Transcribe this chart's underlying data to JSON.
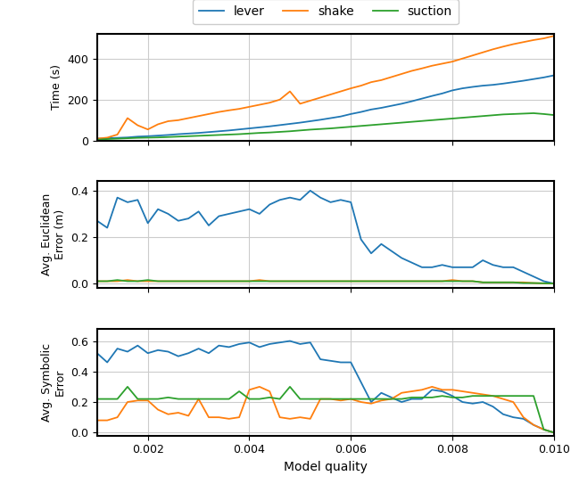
{
  "x": [
    0.001,
    0.0012,
    0.0014,
    0.0016,
    0.0018,
    0.002,
    0.0022,
    0.0024,
    0.0026,
    0.0028,
    0.003,
    0.0032,
    0.0034,
    0.0036,
    0.0038,
    0.004,
    0.0042,
    0.0044,
    0.0046,
    0.0048,
    0.005,
    0.0052,
    0.0054,
    0.0056,
    0.0058,
    0.006,
    0.0062,
    0.0064,
    0.0066,
    0.0068,
    0.007,
    0.0072,
    0.0074,
    0.0076,
    0.0078,
    0.008,
    0.0082,
    0.0084,
    0.0086,
    0.0088,
    0.009,
    0.0092,
    0.0094,
    0.0096,
    0.0098,
    0.01
  ],
  "time_lever": [
    10,
    12,
    14,
    16,
    20,
    22,
    25,
    28,
    32,
    35,
    38,
    42,
    46,
    50,
    55,
    60,
    65,
    70,
    76,
    82,
    88,
    95,
    102,
    110,
    118,
    130,
    140,
    152,
    160,
    170,
    180,
    192,
    205,
    218,
    230,
    245,
    255,
    262,
    268,
    272,
    278,
    285,
    292,
    300,
    308,
    318
  ],
  "time_shake": [
    10,
    15,
    30,
    110,
    75,
    55,
    80,
    95,
    100,
    110,
    120,
    130,
    140,
    148,
    155,
    165,
    175,
    185,
    200,
    240,
    180,
    195,
    210,
    225,
    240,
    255,
    268,
    285,
    295,
    310,
    325,
    340,
    352,
    365,
    375,
    385,
    400,
    415,
    430,
    445,
    458,
    470,
    480,
    490,
    498,
    510
  ],
  "time_suction": [
    5,
    8,
    10,
    12,
    14,
    15,
    16,
    18,
    20,
    22,
    24,
    26,
    28,
    30,
    32,
    35,
    38,
    40,
    43,
    46,
    50,
    54,
    57,
    60,
    64,
    68,
    72,
    76,
    80,
    84,
    88,
    92,
    96,
    100,
    104,
    108,
    112,
    116,
    120,
    124,
    128,
    130,
    132,
    134,
    130,
    125
  ],
  "eucl_lever": [
    0.27,
    0.24,
    0.37,
    0.35,
    0.36,
    0.26,
    0.32,
    0.3,
    0.27,
    0.28,
    0.31,
    0.25,
    0.29,
    0.3,
    0.31,
    0.32,
    0.3,
    0.34,
    0.36,
    0.37,
    0.36,
    0.4,
    0.37,
    0.35,
    0.36,
    0.35,
    0.19,
    0.13,
    0.17,
    0.14,
    0.11,
    0.09,
    0.07,
    0.07,
    0.08,
    0.07,
    0.07,
    0.07,
    0.1,
    0.08,
    0.07,
    0.07,
    0.05,
    0.03,
    0.01,
    0.0
  ],
  "eucl_shake": [
    0.01,
    0.01,
    0.01,
    0.015,
    0.01,
    0.01,
    0.01,
    0.01,
    0.01,
    0.01,
    0.01,
    0.01,
    0.01,
    0.01,
    0.01,
    0.01,
    0.015,
    0.01,
    0.01,
    0.01,
    0.01,
    0.01,
    0.01,
    0.01,
    0.01,
    0.01,
    0.01,
    0.01,
    0.01,
    0.01,
    0.01,
    0.01,
    0.01,
    0.01,
    0.01,
    0.015,
    0.01,
    0.01,
    0.005,
    0.005,
    0.005,
    0.005,
    0.005,
    0.002,
    0.001,
    0.0
  ],
  "eucl_suction": [
    0.01,
    0.01,
    0.015,
    0.01,
    0.01,
    0.015,
    0.01,
    0.01,
    0.01,
    0.01,
    0.01,
    0.01,
    0.01,
    0.01,
    0.01,
    0.01,
    0.01,
    0.01,
    0.01,
    0.01,
    0.01,
    0.01,
    0.01,
    0.01,
    0.01,
    0.01,
    0.01,
    0.01,
    0.01,
    0.01,
    0.01,
    0.01,
    0.01,
    0.01,
    0.01,
    0.01,
    0.01,
    0.01,
    0.005,
    0.005,
    0.005,
    0.005,
    0.002,
    0.002,
    0.001,
    0.0
  ],
  "symb_lever": [
    0.52,
    0.46,
    0.55,
    0.53,
    0.57,
    0.52,
    0.54,
    0.53,
    0.5,
    0.52,
    0.55,
    0.52,
    0.57,
    0.56,
    0.58,
    0.59,
    0.56,
    0.58,
    0.59,
    0.6,
    0.58,
    0.59,
    0.48,
    0.47,
    0.46,
    0.46,
    0.33,
    0.2,
    0.26,
    0.23,
    0.2,
    0.22,
    0.22,
    0.28,
    0.27,
    0.24,
    0.2,
    0.19,
    0.2,
    0.17,
    0.12,
    0.1,
    0.09,
    0.05,
    0.02,
    0.0
  ],
  "symb_shake": [
    0.08,
    0.08,
    0.1,
    0.2,
    0.21,
    0.21,
    0.15,
    0.12,
    0.13,
    0.11,
    0.22,
    0.1,
    0.1,
    0.09,
    0.1,
    0.28,
    0.3,
    0.27,
    0.1,
    0.09,
    0.1,
    0.09,
    0.22,
    0.22,
    0.21,
    0.22,
    0.2,
    0.19,
    0.21,
    0.22,
    0.26,
    0.27,
    0.28,
    0.3,
    0.28,
    0.28,
    0.27,
    0.26,
    0.25,
    0.24,
    0.22,
    0.2,
    0.1,
    0.05,
    0.02,
    0.0
  ],
  "symb_suction": [
    0.22,
    0.22,
    0.22,
    0.3,
    0.22,
    0.22,
    0.22,
    0.23,
    0.22,
    0.22,
    0.22,
    0.22,
    0.22,
    0.22,
    0.27,
    0.22,
    0.22,
    0.23,
    0.22,
    0.3,
    0.22,
    0.22,
    0.22,
    0.22,
    0.22,
    0.22,
    0.22,
    0.22,
    0.22,
    0.22,
    0.22,
    0.23,
    0.23,
    0.23,
    0.24,
    0.23,
    0.23,
    0.24,
    0.24,
    0.24,
    0.24,
    0.24,
    0.24,
    0.24,
    0.02,
    0.0
  ],
  "color_lever": "#1f77b4",
  "color_shake": "#ff7f0e",
  "color_suction": "#2ca02c",
  "ylabel1": "Time (s)",
  "ylabel2": "Avg. Euclidean\nError (m)",
  "ylabel3": "Avg. Symbolic\nError",
  "xlabel": "Model quality",
  "ylim1": [
    0,
    520
  ],
  "ylim2": [
    -0.02,
    0.44
  ],
  "ylim3": [
    -0.02,
    0.68
  ],
  "yticks1": [
    0,
    200,
    400
  ],
  "yticks2": [
    0.0,
    0.2,
    0.4
  ],
  "yticks3": [
    0.0,
    0.2,
    0.4,
    0.6
  ],
  "xticks": [
    0.002,
    0.004,
    0.006,
    0.008,
    0.01
  ],
  "xlim": [
    0.001,
    0.01
  ]
}
